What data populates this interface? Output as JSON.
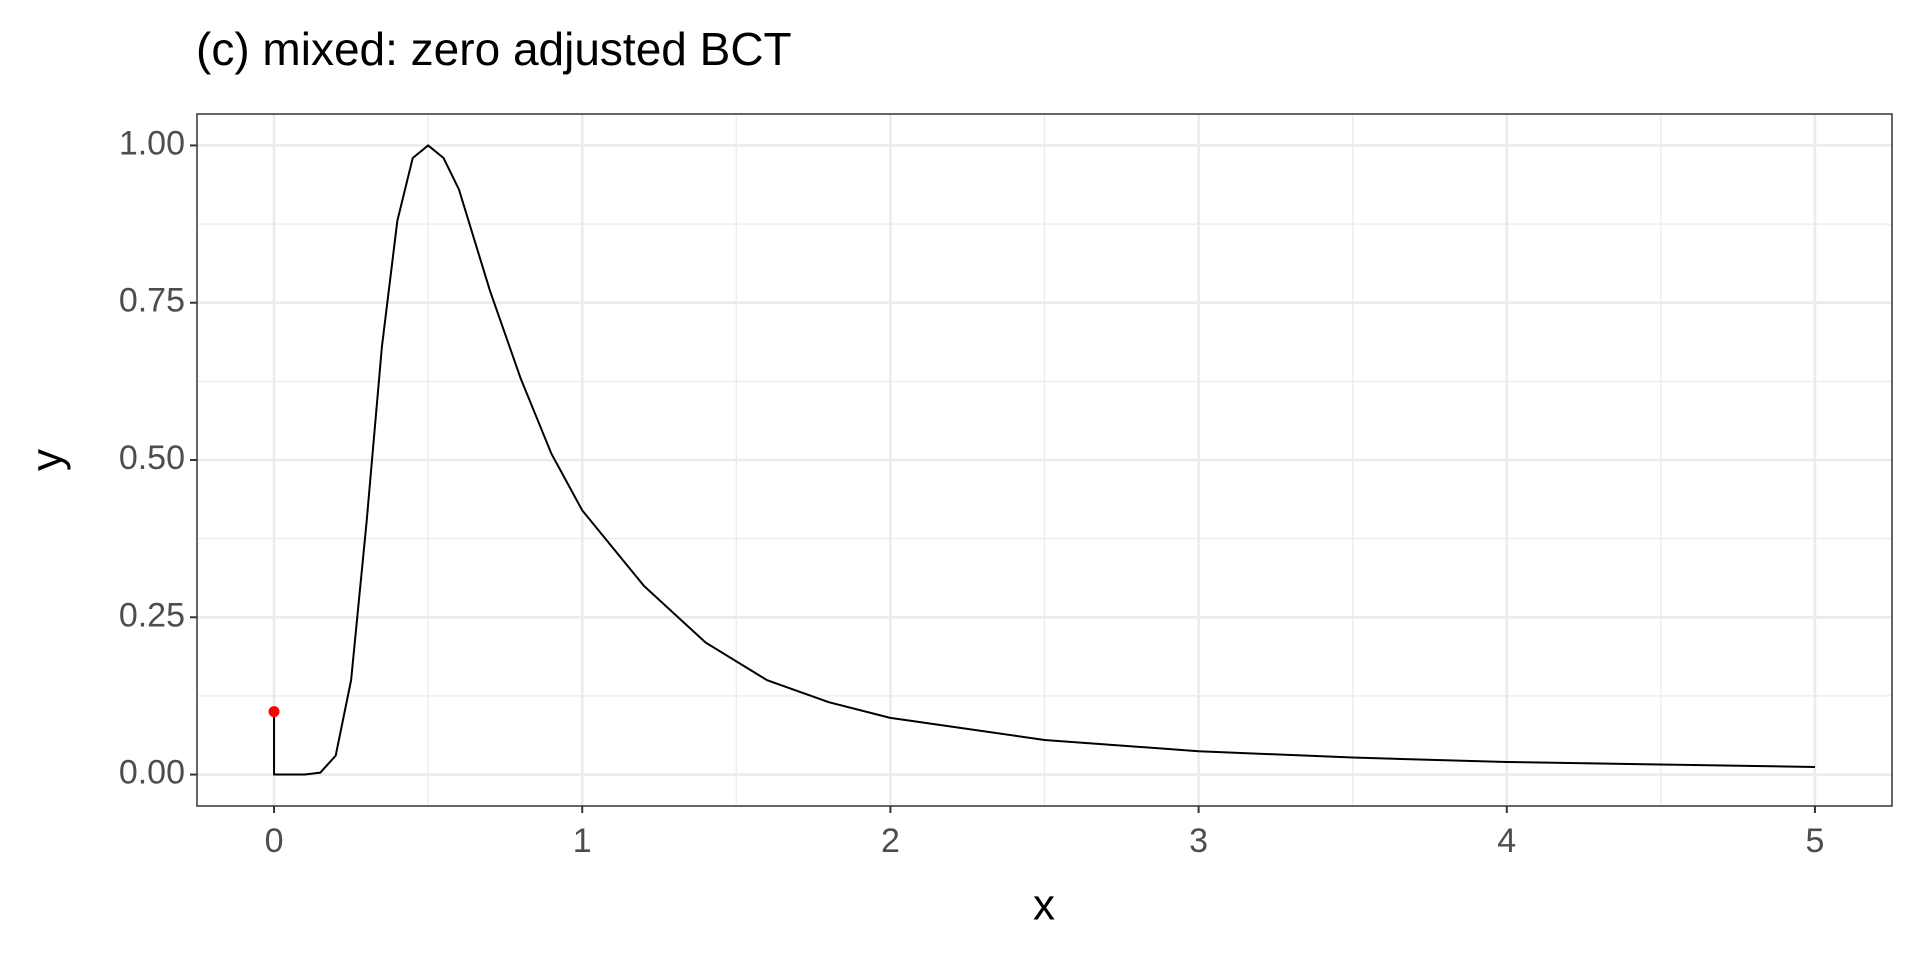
{
  "chart_data": {
    "type": "line",
    "title": "(c) mixed: zero adjusted BCT",
    "x_label": "x",
    "y_label": "y",
    "xlim": [
      -0.25,
      5.25
    ],
    "ylim": [
      -0.05,
      1.05
    ],
    "xticks": [
      0,
      1,
      2,
      3,
      4,
      5
    ],
    "xminor": [
      0.5,
      1.5,
      2.5,
      3.5,
      4.5
    ],
    "yticks": [
      {
        "value": 0,
        "label": "0.00"
      },
      {
        "value": 0.25,
        "label": "0.25"
      },
      {
        "value": 0.5,
        "label": "0.50"
      },
      {
        "value": 0.75,
        "label": "0.75"
      },
      {
        "value": 1,
        "label": "1.00"
      }
    ],
    "yminor": [
      0.125,
      0.375,
      0.625,
      0.875
    ],
    "grid": true,
    "series": [
      {
        "color": "#000000",
        "x": [
          0,
          0,
          0.1,
          0.15,
          0.2,
          0.25,
          0.3,
          0.35,
          0.4,
          0.45,
          0.5,
          0.55,
          0.6,
          0.7,
          0.8,
          0.9,
          1.0,
          1.2,
          1.4,
          1.6,
          1.8,
          2.0,
          2.5,
          3,
          3.5,
          4,
          4.5,
          5
        ],
        "values": [
          0.1,
          0,
          0,
          0.003,
          0.03,
          0.15,
          0.4,
          0.68,
          0.88,
          0.98,
          1.0,
          0.98,
          0.93,
          0.77,
          0.63,
          0.51,
          0.42,
          0.3,
          0.21,
          0.15,
          0.115,
          0.09,
          0.055,
          0.037,
          0.027,
          0.02,
          0.016,
          0.012
        ]
      }
    ],
    "points": {
      "color": "#ff0000",
      "x": [
        0
      ],
      "values": [
        0.1
      ]
    }
  }
}
